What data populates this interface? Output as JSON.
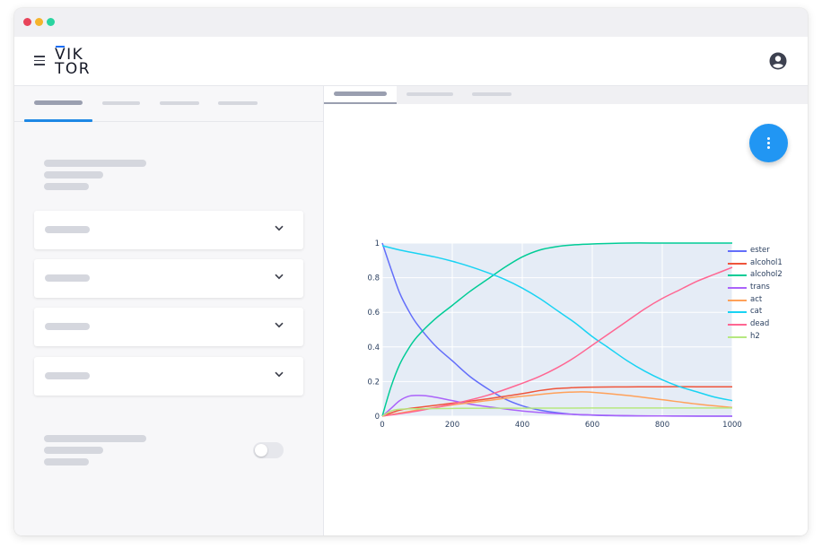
{
  "app": {
    "logo_line1": "VIK",
    "logo_line2": "TOR",
    "window_dots": [
      "#e8445a",
      "#f5b42b",
      "#2ad4a0"
    ]
  },
  "header": {
    "menu_icon": "hamburger-icon",
    "user_icon": "account-circle-icon"
  },
  "left_panel": {
    "sections": [
      "section-1",
      "section-2",
      "section-3",
      "section-4"
    ],
    "toggle_state": "off"
  },
  "main": {
    "fab_icon": "more-vertical-icon",
    "accent": "#2196f3"
  },
  "chart_data": {
    "type": "line",
    "xlim": [
      0,
      1000
    ],
    "ylim": [
      0,
      1
    ],
    "x_ticks": [
      "0",
      "200",
      "400",
      "600",
      "800",
      "1000"
    ],
    "y_ticks": [
      "0",
      "0.2",
      "0.4",
      "0.6",
      "0.8",
      "1"
    ],
    "grid": true,
    "legend_position": "right",
    "background": "#e5ecf6",
    "series": [
      {
        "name": "ester",
        "color": "#636efa",
        "x": [
          0,
          25,
          50,
          75,
          100,
          150,
          200,
          250,
          300,
          350,
          400,
          450,
          500,
          550,
          600,
          650,
          700,
          800,
          900,
          1000
        ],
        "y": [
          1.0,
          0.85,
          0.71,
          0.61,
          0.53,
          0.41,
          0.32,
          0.23,
          0.16,
          0.1,
          0.06,
          0.035,
          0.02,
          0.01,
          0.006,
          0.003,
          0.002,
          0.001,
          0.0,
          0.0
        ]
      },
      {
        "name": "alcohol1",
        "color": "#ef553b",
        "x": [
          0,
          50,
          100,
          200,
          300,
          400,
          450,
          500,
          550,
          600,
          700,
          800,
          900,
          1000
        ],
        "y": [
          0.0,
          0.035,
          0.05,
          0.075,
          0.1,
          0.13,
          0.148,
          0.16,
          0.165,
          0.168,
          0.169,
          0.17,
          0.17,
          0.17
        ]
      },
      {
        "name": "alcohol2",
        "color": "#00cc96",
        "x": [
          0,
          25,
          50,
          75,
          100,
          150,
          200,
          250,
          300,
          350,
          400,
          450,
          500,
          550,
          600,
          700,
          800,
          900,
          1000
        ],
        "y": [
          0.0,
          0.17,
          0.3,
          0.39,
          0.46,
          0.56,
          0.64,
          0.72,
          0.79,
          0.86,
          0.92,
          0.96,
          0.98,
          0.99,
          0.995,
          1.0,
          1.0,
          1.0,
          1.0
        ]
      },
      {
        "name": "trans",
        "color": "#ab63fa",
        "x": [
          0,
          25,
          50,
          75,
          100,
          125,
          150,
          200,
          250,
          300,
          400,
          500,
          600,
          700,
          800,
          1000
        ],
        "y": [
          0.0,
          0.045,
          0.09,
          0.115,
          0.12,
          0.118,
          0.11,
          0.09,
          0.07,
          0.055,
          0.03,
          0.015,
          0.007,
          0.003,
          0.001,
          0.0
        ]
      },
      {
        "name": "act",
        "color": "#ffa15a",
        "x": [
          0,
          100,
          200,
          300,
          400,
          500,
          560,
          600,
          700,
          800,
          900,
          1000
        ],
        "y": [
          0.0,
          0.035,
          0.065,
          0.09,
          0.115,
          0.135,
          0.14,
          0.138,
          0.12,
          0.095,
          0.07,
          0.05
        ]
      },
      {
        "name": "cat",
        "color": "#19d3f3",
        "x": [
          0,
          50,
          100,
          150,
          200,
          250,
          300,
          350,
          400,
          450,
          500,
          550,
          600,
          650,
          700,
          750,
          800,
          850,
          900,
          950,
          1000
        ],
        "y": [
          0.985,
          0.96,
          0.94,
          0.92,
          0.895,
          0.865,
          0.83,
          0.79,
          0.74,
          0.68,
          0.61,
          0.54,
          0.46,
          0.39,
          0.32,
          0.26,
          0.21,
          0.17,
          0.14,
          0.11,
          0.09
        ]
      },
      {
        "name": "dead",
        "color": "#ff6692",
        "x": [
          0,
          100,
          200,
          300,
          400,
          450,
          500,
          550,
          600,
          650,
          700,
          750,
          800,
          850,
          900,
          950,
          1000
        ],
        "y": [
          0.0,
          0.03,
          0.07,
          0.12,
          0.19,
          0.23,
          0.28,
          0.34,
          0.41,
          0.48,
          0.55,
          0.62,
          0.68,
          0.73,
          0.78,
          0.82,
          0.86
        ]
      },
      {
        "name": "h2",
        "color": "#b6e880",
        "x": [
          0,
          25,
          50,
          100,
          200,
          400,
          600,
          800,
          1000
        ],
        "y": [
          0.0,
          0.03,
          0.04,
          0.043,
          0.045,
          0.046,
          0.047,
          0.047,
          0.047
        ]
      }
    ]
  }
}
